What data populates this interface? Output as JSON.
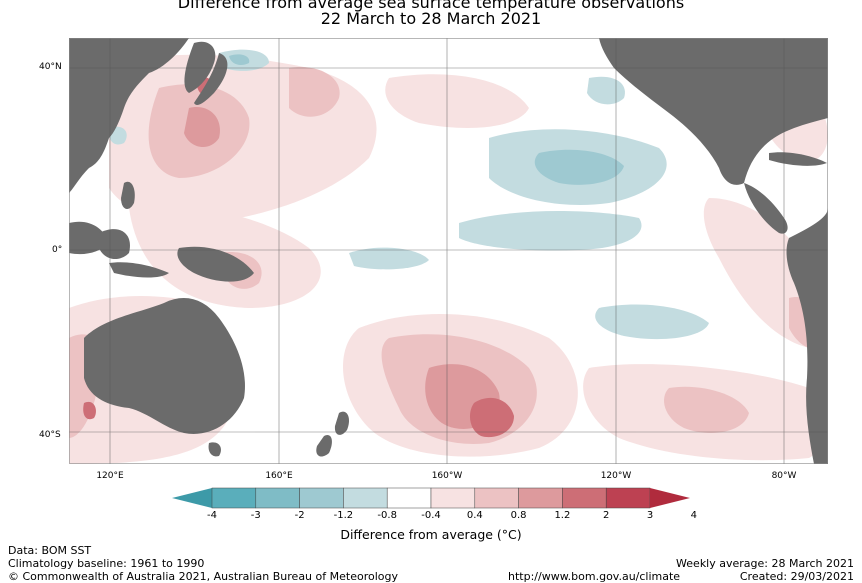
{
  "title": {
    "line1": "Difference from average sea surface temperature observations",
    "line2": "22 March to 28 March 2021"
  },
  "map": {
    "lat_labels": [
      "40°N",
      "0°",
      "40°S"
    ],
    "lon_labels": [
      "120°E",
      "160°E",
      "160°W",
      "120°W",
      "80°W"
    ],
    "colors": {
      "land": "#6b6b6b",
      "ocean_neutral": "#ffffff",
      "gridline": "#555555"
    }
  },
  "colorbar": {
    "ticks": [
      "-4",
      "-3",
      "-2",
      "-1.2",
      "-0.8",
      "-0.4",
      "0.4",
      "0.8",
      "1.2",
      "2",
      "3",
      "4"
    ],
    "colors": [
      "#3d9aa8",
      "#5aaebb",
      "#7fbcc6",
      "#9ec9d1",
      "#c3dce0",
      "#ffffff",
      "#f7e2e2",
      "#ecc2c3",
      "#dd9a9d",
      "#cd6e76",
      "#bd4152",
      "#b02b3d"
    ],
    "label": "Difference from average (°C)"
  },
  "footer": {
    "data_source": "Data: BOM SST",
    "baseline": "Climatology baseline: 1961 to 1990",
    "copyright": "© Commonwealth of Australia 2021, Australian Bureau of Meteorology",
    "weekly": "Weekly average: 28 March 2021",
    "url": "http://www.bom.gov.au/climate",
    "created": "Created: 29/03/2021"
  }
}
